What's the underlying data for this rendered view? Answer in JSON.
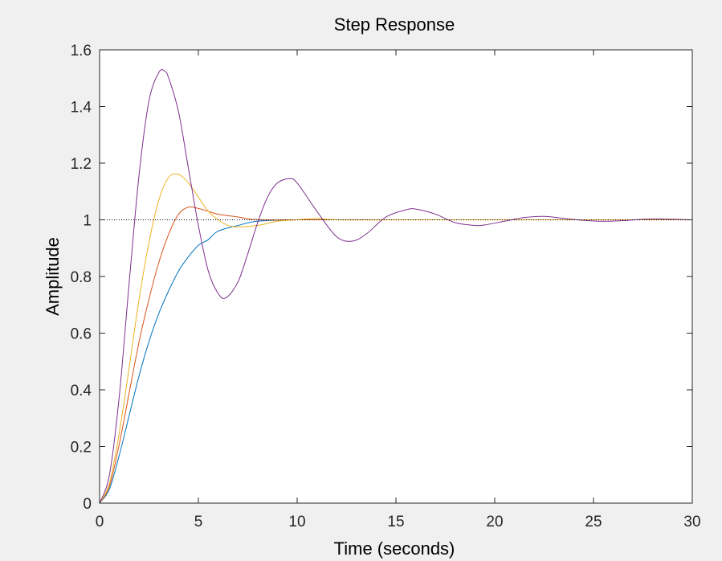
{
  "chart_data": {
    "type": "line",
    "title": "Step Response",
    "xlabel": "Time (seconds)",
    "ylabel": "Amplitude",
    "xlim": [
      0,
      30
    ],
    "ylim": [
      0,
      1.6
    ],
    "xticks": [
      0,
      5,
      10,
      15,
      20,
      25,
      30
    ],
    "xtick_labels": [
      "0",
      "5",
      "10",
      "15",
      "20",
      "25",
      "30"
    ],
    "yticks": [
      0,
      0.2,
      0.4,
      0.6,
      0.8,
      1.0,
      1.2,
      1.4,
      1.6
    ],
    "ytick_labels": [
      "0",
      "0.2",
      "0.4",
      "0.6",
      "0.8",
      "1",
      "1.2",
      "1.4",
      "1.6"
    ],
    "grid": false,
    "legend": "none",
    "reference_line": {
      "y": 1,
      "style": "dotted",
      "color": "#000000"
    },
    "series": [
      {
        "color": "#0072bd",
        "points": [
          [
            0,
            0
          ],
          [
            0.5,
            0.05
          ],
          [
            1,
            0.17
          ],
          [
            1.5,
            0.31
          ],
          [
            2,
            0.45
          ],
          [
            2.5,
            0.57
          ],
          [
            3,
            0.67
          ],
          [
            3.5,
            0.75
          ],
          [
            4,
            0.82
          ],
          [
            4.5,
            0.87
          ],
          [
            5,
            0.91
          ],
          [
            5.5,
            0.93
          ],
          [
            6,
            0.96
          ],
          [
            7,
            0.98
          ],
          [
            8,
            0.995
          ],
          [
            10,
            1.0
          ],
          [
            15,
            1.0
          ],
          [
            20,
            1.0
          ],
          [
            25,
            1.0
          ],
          [
            30,
            1.0
          ]
        ]
      },
      {
        "color": "#d95319",
        "points": [
          [
            0,
            0
          ],
          [
            0.5,
            0.06
          ],
          [
            1,
            0.21
          ],
          [
            1.5,
            0.39
          ],
          [
            2,
            0.57
          ],
          [
            2.5,
            0.72
          ],
          [
            3,
            0.85
          ],
          [
            3.5,
            0.95
          ],
          [
            4,
            1.02
          ],
          [
            4.5,
            1.045
          ],
          [
            5,
            1.04
          ],
          [
            5.5,
            1.03
          ],
          [
            6,
            1.02
          ],
          [
            7,
            1.01
          ],
          [
            8,
            1.0
          ],
          [
            10,
            1.0
          ],
          [
            12,
            1.0
          ],
          [
            15,
            1.0
          ],
          [
            20,
            1.0
          ],
          [
            25,
            1.0
          ],
          [
            30,
            1.0
          ]
        ]
      },
      {
        "color": "#edb120",
        "points": [
          [
            0,
            0
          ],
          [
            0.5,
            0.07
          ],
          [
            1,
            0.25
          ],
          [
            1.5,
            0.48
          ],
          [
            2,
            0.72
          ],
          [
            2.5,
            0.92
          ],
          [
            3,
            1.07
          ],
          [
            3.5,
            1.15
          ],
          [
            4,
            1.16
          ],
          [
            4.5,
            1.13
          ],
          [
            5,
            1.08
          ],
          [
            5.5,
            1.03
          ],
          [
            6,
            1.0
          ],
          [
            6.5,
            0.98
          ],
          [
            7,
            0.975
          ],
          [
            8,
            0.98
          ],
          [
            9,
            0.995
          ],
          [
            10,
            1.0
          ],
          [
            11,
            1.005
          ],
          [
            12,
            1.0
          ],
          [
            15,
            1.0
          ],
          [
            20,
            1.0
          ],
          [
            30,
            1.0
          ]
        ]
      },
      {
        "color": "#7e2f8e",
        "points": [
          [
            0,
            0
          ],
          [
            0.5,
            0.1
          ],
          [
            1,
            0.38
          ],
          [
            1.5,
            0.78
          ],
          [
            2,
            1.16
          ],
          [
            2.5,
            1.42
          ],
          [
            3,
            1.52
          ],
          [
            3.3,
            1.525
          ],
          [
            3.5,
            1.5
          ],
          [
            4,
            1.38
          ],
          [
            4.5,
            1.18
          ],
          [
            5,
            0.98
          ],
          [
            5.5,
            0.82
          ],
          [
            6,
            0.74
          ],
          [
            6.4,
            0.725
          ],
          [
            7,
            0.78
          ],
          [
            7.5,
            0.88
          ],
          [
            8,
            0.99
          ],
          [
            8.5,
            1.08
          ],
          [
            9,
            1.13
          ],
          [
            9.6,
            1.145
          ],
          [
            10,
            1.13
          ],
          [
            11,
            1.03
          ],
          [
            12,
            0.94
          ],
          [
            12.8,
            0.925
          ],
          [
            13.5,
            0.95
          ],
          [
            14.5,
            1.01
          ],
          [
            15.5,
            1.035
          ],
          [
            16,
            1.038
          ],
          [
            17,
            1.02
          ],
          [
            18,
            0.99
          ],
          [
            19,
            0.98
          ],
          [
            19.5,
            0.982
          ],
          [
            20.5,
            0.995
          ],
          [
            21.5,
            1.008
          ],
          [
            22.5,
            1.012
          ],
          [
            23.5,
            1.005
          ],
          [
            24.5,
            0.998
          ],
          [
            25.5,
            0.995
          ],
          [
            26.5,
            0.997
          ],
          [
            27.5,
            1.002
          ],
          [
            28.5,
            1.003
          ],
          [
            29.5,
            1.001
          ],
          [
            30,
            1.0
          ]
        ]
      }
    ]
  }
}
